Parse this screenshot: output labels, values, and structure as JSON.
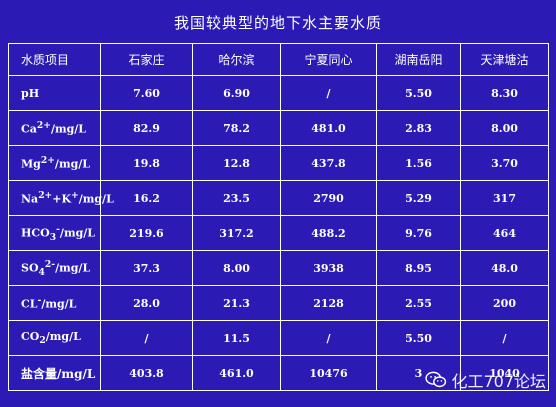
{
  "title": "我国较典型的地下水主要水质",
  "header": [
    "水质项目",
    "石家庄",
    "哈尔滨",
    "宁夏同心",
    "湖南岳阳",
    "天津塘沽"
  ],
  "rows": [
    {
      "label_html": "pH",
      "values": [
        "7.60",
        "6.90",
        "/",
        "5.50",
        "8.30"
      ]
    },
    {
      "label_html": "Ca<sup>2+</sup>/mg/L",
      "values": [
        "82.9",
        "78.2",
        "481.0",
        "2.83",
        "8.00"
      ]
    },
    {
      "label_html": "Mg<sup>2+</sup>/mg/L",
      "values": [
        "19.8",
        "12.8",
        "437.8",
        "1.56",
        "3.70"
      ]
    },
    {
      "label_html": "Na<sup>2+</sup>+K<sup>+</sup>/mg/L",
      "values": [
        "16.2",
        "23.5",
        "2790",
        "5.29",
        "317"
      ]
    },
    {
      "label_html": "HCO<sub>3</sub><sup>-</sup>/mg/L",
      "values": [
        "219.6",
        "317.2",
        "488.2",
        "9.76",
        "464"
      ]
    },
    {
      "label_html": "SO<sub>4</sub><sup>2-</sup>/mg/L",
      "values": [
        "37.3",
        "8.00",
        "3938",
        "8.95",
        "48.0"
      ]
    },
    {
      "label_html": "CL<sup>-</sup>/mg/L",
      "values": [
        "28.0",
        "21.3",
        "2128",
        "2.55",
        "200"
      ]
    },
    {
      "label_html": "CO<sub>2</sub>/mg/L",
      "values": [
        "/",
        "11.5",
        "/",
        "5.50",
        "/"
      ]
    },
    {
      "label_html": "盐含量/mg/L",
      "values": [
        "403.8",
        "461.0",
        "10476",
        "3",
        "1040"
      ]
    }
  ],
  "watermark": {
    "text": "化工707论坛",
    "icon": "wechat-icon"
  }
}
